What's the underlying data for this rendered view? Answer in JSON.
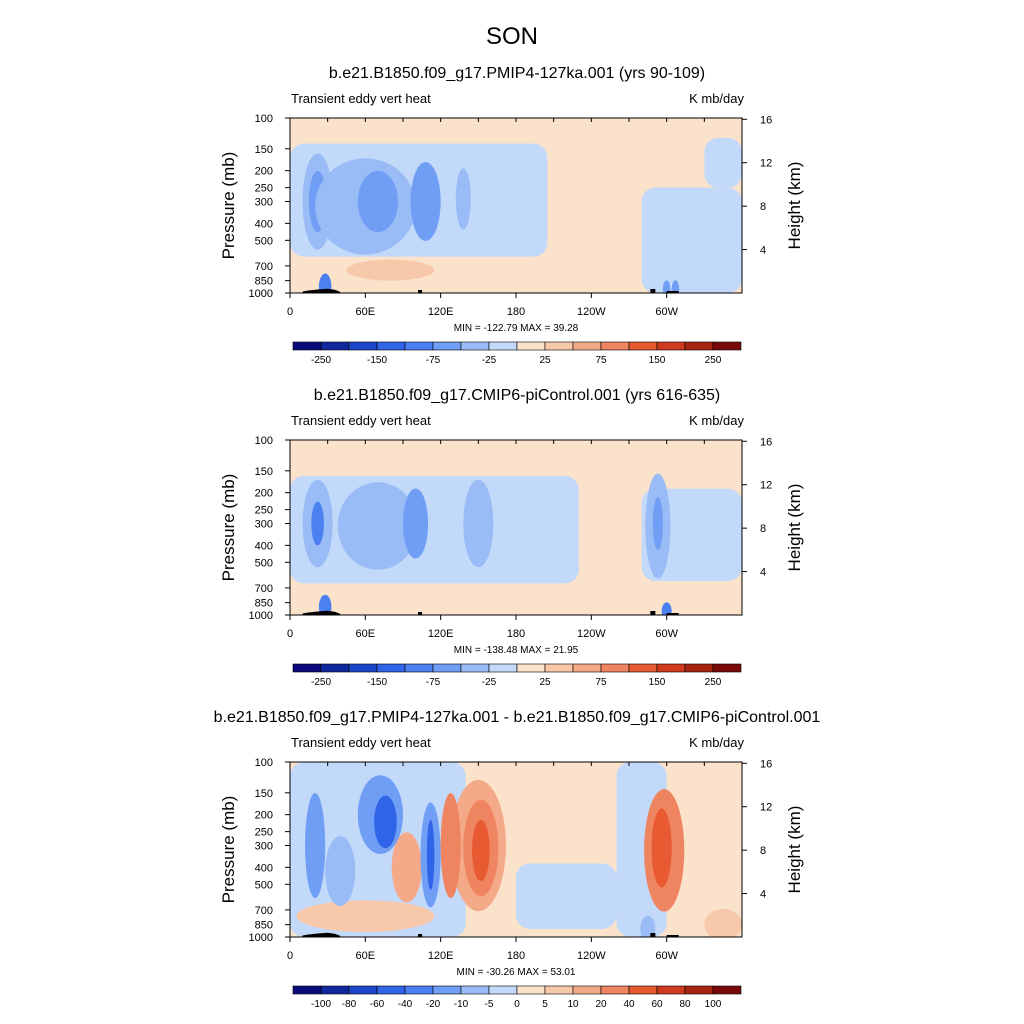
{
  "figure": {
    "title": "SON"
  },
  "chart_data": [
    {
      "type": "heatmap",
      "title": "b.e21.B1850.f09_g17.PMIP4-127ka.001 (yrs 90-109)",
      "left_label": "Transient eddy vert heat",
      "units": "K mb/day",
      "ylabel": "Pressure (mb)",
      "ylabel_right": "Height (km)",
      "xticks": [
        "0",
        "60E",
        "120E",
        "180",
        "120W",
        "60W"
      ],
      "yticks": [
        "100",
        "150",
        "200",
        "250",
        "300",
        "400",
        "500",
        "700",
        "850",
        "1000"
      ],
      "yticks_right": [
        "4",
        "8",
        "12",
        "16"
      ],
      "stats": "MIN = -122.79  MAX =  39.28",
      "colorbar_labels": [
        "-250",
        "-150",
        "-75",
        "-25",
        "25",
        "75",
        "150",
        "250"
      ],
      "min": -122.79,
      "max": 39.28
    },
    {
      "type": "heatmap",
      "title": "b.e21.B1850.f09_g17.CMIP6-piControl.001 (yrs 616-635)",
      "left_label": "Transient eddy vert heat",
      "units": "K mb/day",
      "ylabel": "Pressure (mb)",
      "ylabel_right": "Height (km)",
      "xticks": [
        "0",
        "60E",
        "120E",
        "180",
        "120W",
        "60W"
      ],
      "yticks": [
        "100",
        "150",
        "200",
        "250",
        "300",
        "400",
        "500",
        "700",
        "850",
        "1000"
      ],
      "yticks_right": [
        "4",
        "8",
        "12",
        "16"
      ],
      "stats": "MIN = -138.48  MAX =  21.95",
      "colorbar_labels": [
        "-250",
        "-150",
        "-75",
        "-25",
        "25",
        "75",
        "150",
        "250"
      ],
      "min": -138.48,
      "max": 21.95
    },
    {
      "type": "heatmap",
      "title": "b.e21.B1850.f09_g17.PMIP4-127ka.001 - b.e21.B1850.f09_g17.CMIP6-piControl.001",
      "left_label": "Transient eddy vert heat",
      "units": "K mb/day",
      "ylabel": "Pressure (mb)",
      "ylabel_right": "Height (km)",
      "xticks": [
        "0",
        "60E",
        "120E",
        "180",
        "120W",
        "60W"
      ],
      "yticks": [
        "100",
        "150",
        "200",
        "250",
        "300",
        "400",
        "500",
        "700",
        "850",
        "1000"
      ],
      "yticks_right": [
        "4",
        "8",
        "12",
        "16"
      ],
      "stats": "MIN = -30.26  MAX =  53.01",
      "colorbar_labels": [
        "-100",
        "-80",
        "-60",
        "-40",
        "-20",
        "-10",
        "-5",
        "0",
        "5",
        "10",
        "20",
        "40",
        "60",
        "80",
        "100"
      ],
      "min": -30.26,
      "max": 53.01
    }
  ],
  "colors": {
    "colorbar": [
      "#0a0a7a",
      "#10289e",
      "#1c46c8",
      "#2f63e8",
      "#4a80f0",
      "#6f9ef4",
      "#99bcf6",
      "#c3d9fa",
      "#fbe2cb",
      "#f8c8aa",
      "#f4aa88",
      "#ef8460",
      "#e85a32",
      "#cf3a1c",
      "#a82412",
      "#7a0a0a"
    ],
    "topography": "#000000"
  }
}
